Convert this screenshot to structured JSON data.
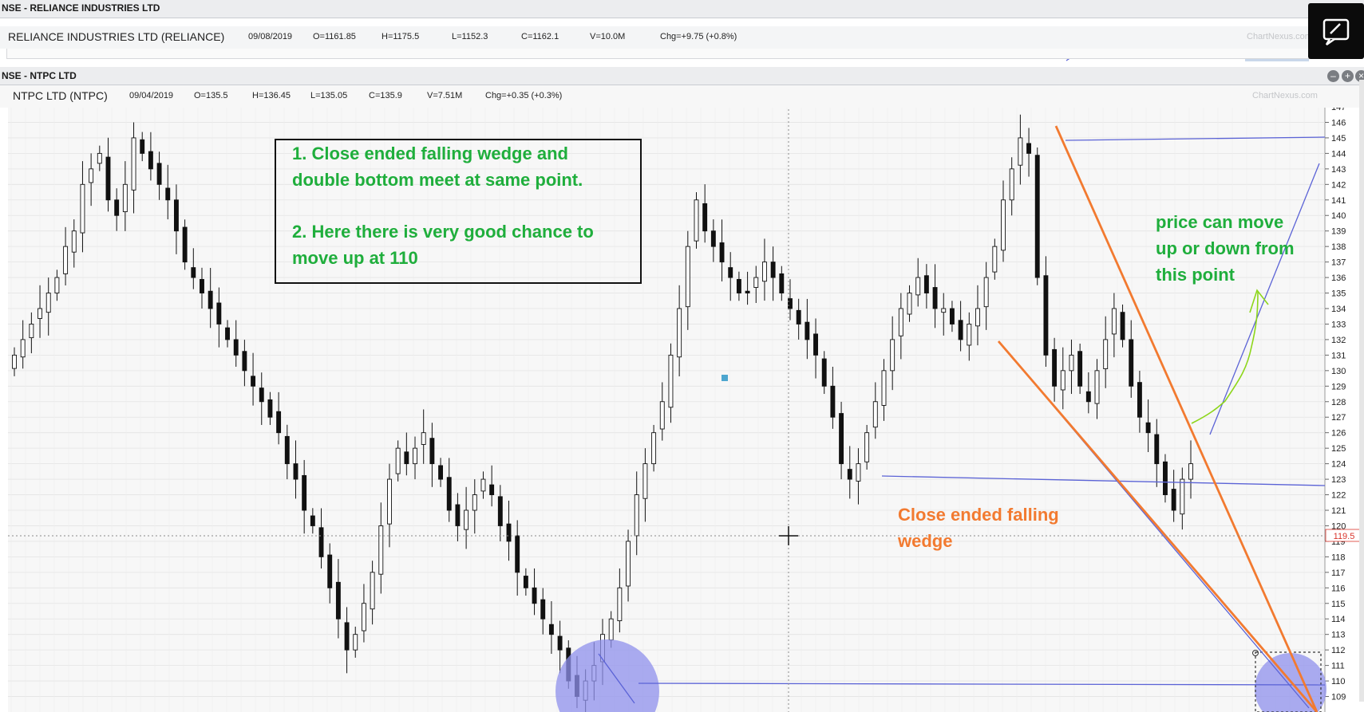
{
  "window1": {
    "title": "NSE - RELIANCE INDUSTRIES LTD",
    "name": "RELIANCE INDUSTRIES LTD (RELIANCE)",
    "date": "09/08/2019",
    "open": "O=1161.85",
    "high": "H=1175.5",
    "low": "L=1152.3",
    "close": "C=1162.1",
    "volume": "V=10.0M",
    "change": "Chg=+9.75 (+0.8%)",
    "watermark": "ChartNexus.com"
  },
  "window2": {
    "title": "NSE - NTPC LTD",
    "name": "NTPC LTD (NTPC)",
    "date": "09/04/2019",
    "open": "O=135.5",
    "high": "H=136.45",
    "low": "L=135.05",
    "close": "C=135.9",
    "volume": "V=7.51M",
    "change": "Chg=+0.35 (+0.3%)",
    "watermark": "ChartNexus.com"
  },
  "annotations": {
    "box_line1": "1. Close ended falling wedge and",
    "box_line2": "double bottom meet at same point.",
    "box_line3": "2. Here there is very good chance to",
    "box_line4": "move up at 110",
    "right_line1": "price can move",
    "right_line2": "up or down from",
    "right_line3": "this point",
    "wedge_line1": "Close ended falling",
    "wedge_line2": "wedge"
  },
  "icons": {
    "feedback": "feedback-edit-icon",
    "minimize": "minimize-icon",
    "maximize": "maximize-icon",
    "crosshair": "crosshair-icon"
  },
  "colors": {
    "trendline_blue": "#5b63d6",
    "wedge_orange": "#f27a30",
    "annotation_green": "#1fae3c",
    "circle_fill": "#8f90ec",
    "price_tag": "#d9342b"
  },
  "chart_data": {
    "type": "candlestick",
    "title": "NTPC LTD (NTPC)",
    "ylim": [
      108,
      147
    ],
    "y_ticks": [
      109,
      110,
      111,
      112,
      113,
      114,
      115,
      116,
      117,
      118,
      119,
      120,
      121,
      122,
      123,
      124,
      125,
      126,
      127,
      128,
      129,
      130,
      131,
      132,
      133,
      134,
      135,
      136,
      137,
      138,
      139,
      140,
      141,
      142,
      143,
      144,
      145,
      146,
      147
    ],
    "crosshair_price": "119.5",
    "close_series": [
      131,
      132,
      133,
      134,
      135,
      136,
      138,
      139,
      142,
      143,
      144,
      141,
      140,
      142,
      145,
      144,
      143,
      142,
      141,
      139,
      137,
      136,
      135,
      134,
      133,
      132,
      131,
      130,
      129,
      128,
      127,
      126,
      124,
      123,
      121,
      120,
      118,
      116,
      114,
      112,
      113,
      115,
      117,
      120,
      123,
      125,
      124,
      125,
      126,
      124,
      123,
      121,
      120,
      121,
      122,
      123,
      122,
      120,
      119,
      117,
      116,
      115,
      114,
      113,
      112,
      110,
      109,
      110,
      111,
      113,
      114,
      116,
      119,
      122,
      124,
      126,
      128,
      131,
      134,
      138,
      141,
      139,
      138,
      137,
      136,
      135,
      135,
      136,
      137,
      136,
      135,
      134,
      133,
      132,
      131,
      129,
      127,
      124,
      123,
      124,
      126,
      128,
      130,
      132,
      134,
      135,
      136,
      135,
      134,
      134,
      133,
      132,
      133,
      134,
      136,
      138,
      141,
      143,
      145,
      144,
      136,
      131,
      129,
      130,
      131,
      129,
      128,
      130,
      132,
      134,
      132,
      129,
      127,
      126,
      124,
      122,
      121,
      123,
      124
    ]
  }
}
